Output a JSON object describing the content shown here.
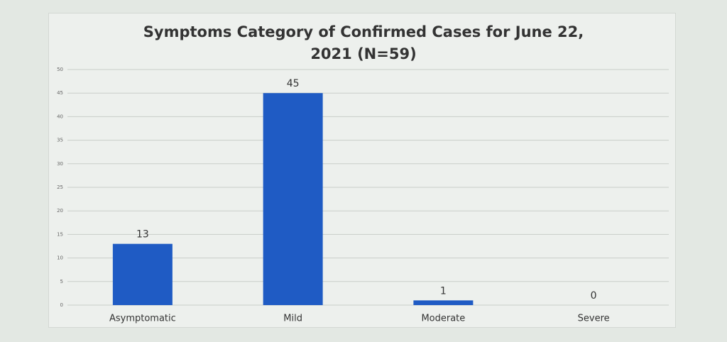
{
  "chart_data": {
    "type": "bar",
    "title": "Symptoms Category of Confirmed Cases for June 22, 2021 (N=59)",
    "categories": [
      "Asymptomatic",
      "Mild",
      "Moderate",
      "Severe"
    ],
    "values": [
      13,
      45,
      1,
      0
    ],
    "color": "#1f5bc4",
    "ylim": [
      0,
      50
    ],
    "yticks": [
      0,
      5,
      10,
      15,
      20,
      25,
      30,
      35,
      40,
      45,
      50
    ],
    "grid": true
  }
}
